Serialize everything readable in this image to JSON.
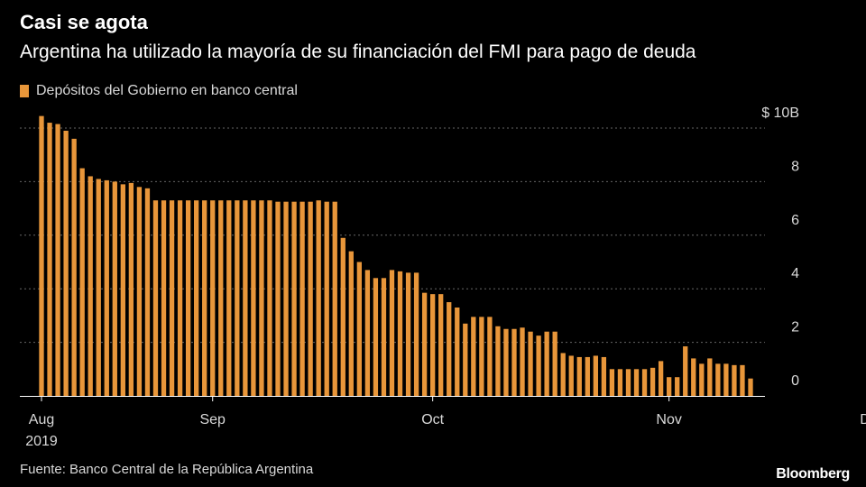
{
  "header": {
    "title": "Casi se agota",
    "subtitle": "Argentina ha utilizado la mayoría de su financiación del FMI para pago de deuda"
  },
  "legend": {
    "label": "Depósitos del Gobierno en banco central",
    "color": "#e8963a"
  },
  "footer": {
    "source": "Fuente: Banco Central de la República Argentina",
    "brand": "Bloomberg"
  },
  "colors": {
    "background": "#000000",
    "bar": "#e8963a",
    "grid": "#666666",
    "text": "#d9d9d9"
  },
  "chart_data": {
    "type": "bar",
    "title": "Casi se agota",
    "subtitle": "Argentina ha utilizado la mayoría de su financiación del FMI para pago de deuda",
    "ylabel": "",
    "xlabel": "",
    "ylim": [
      0,
      10
    ],
    "yticks": [
      0,
      2,
      4,
      6,
      8,
      10
    ],
    "ytick_labels": [
      "0",
      "2",
      "4",
      "6",
      "8",
      "$ 10B"
    ],
    "y_axis_position": "right",
    "grid": true,
    "legend_position": "top-left",
    "xtick_labels": [
      {
        "label": "Aug",
        "sublabel": "2019",
        "bar_index": 0
      },
      {
        "label": "Sep",
        "sublabel": "",
        "bar_index": 21
      },
      {
        "label": "Oct",
        "sublabel": "",
        "bar_index": 48
      },
      {
        "label": "Nov",
        "sublabel": "",
        "bar_index": 77
      },
      {
        "label": "Dec",
        "sublabel": "",
        "bar_index": 102
      }
    ],
    "series": [
      {
        "name": "Depósitos del Gobierno en banco central",
        "values": [
          10.45,
          10.2,
          10.15,
          9.9,
          9.6,
          8.5,
          8.2,
          8.1,
          8.05,
          8.0,
          7.9,
          7.95,
          7.8,
          7.75,
          7.3,
          7.3,
          7.3,
          7.3,
          7.3,
          7.3,
          7.3,
          7.3,
          7.3,
          7.3,
          7.3,
          7.3,
          7.3,
          7.3,
          7.3,
          7.25,
          7.25,
          7.25,
          7.25,
          7.25,
          7.3,
          7.25,
          7.25,
          5.9,
          5.4,
          5.0,
          4.7,
          4.4,
          4.4,
          4.7,
          4.65,
          4.6,
          4.6,
          3.85,
          3.8,
          3.8,
          3.5,
          3.3,
          2.7,
          2.95,
          2.95,
          2.95,
          2.6,
          2.5,
          2.5,
          2.55,
          2.4,
          2.25,
          2.4,
          2.4,
          1.6,
          1.5,
          1.45,
          1.45,
          1.5,
          1.45,
          1.0,
          1.0,
          1.0,
          1.0,
          1.0,
          1.05,
          1.3,
          0.7,
          0.7,
          1.85,
          1.4,
          1.2,
          1.4,
          1.2,
          1.2,
          1.15,
          1.15,
          0.65
        ]
      }
    ]
  }
}
